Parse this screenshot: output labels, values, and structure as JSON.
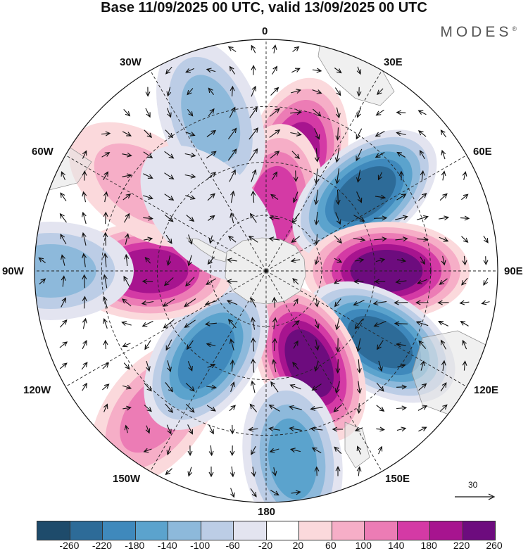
{
  "title": "Base 11/09/2025 00 UTC, valid 13/09/2025 00 UTC",
  "brand": "MODES",
  "brand_mark": "®",
  "longitude_labels": {
    "top": "0",
    "e30": "30E",
    "e60": "60E",
    "e90": "90E",
    "e120": "120E",
    "e150": "150E",
    "bottom": "180",
    "w150": "150W",
    "w120": "120W",
    "w90": "90W",
    "w60": "60W",
    "w30": "30W"
  },
  "reference_vector": {
    "label": "30"
  },
  "colorbar": {
    "colors": [
      "#1e4b6b",
      "#2d6b98",
      "#3f89bc",
      "#5ba3cd",
      "#8db9db",
      "#bccde6",
      "#e3e4f0",
      "#ffffff",
      "#fbd9dc",
      "#f6aec7",
      "#ec7cb5",
      "#d43aa5",
      "#a7148f",
      "#6d0c7e"
    ],
    "ticks": [
      "-260",
      "-220",
      "-180",
      "-140",
      "-100",
      "-60",
      "-20",
      "20",
      "60",
      "100",
      "140",
      "180",
      "220",
      "260"
    ]
  },
  "map_field": {
    "anomalies": [
      {
        "lon": 15,
        "r": 0.5,
        "value": 200
      },
      {
        "lon": 7,
        "r": 0.28,
        "value": 160
      },
      {
        "lon": 52,
        "r": 0.54,
        "value": -230
      },
      {
        "lon": 90,
        "r": 0.52,
        "value": 230
      },
      {
        "lon": 122,
        "r": 0.58,
        "value": -260
      },
      {
        "lon": 155,
        "r": 0.44,
        "value": 240
      },
      {
        "lon": 172,
        "r": 0.82,
        "value": -150
      },
      {
        "lon": -142,
        "r": 0.78,
        "value": 110
      },
      {
        "lon": -145,
        "r": 0.45,
        "value": -200
      },
      {
        "lon": -90,
        "r": 0.5,
        "value": 210
      },
      {
        "lon": -90,
        "r": 0.93,
        "value": -140
      },
      {
        "lon": -55,
        "r": 0.65,
        "value": 90
      },
      {
        "lon": -20,
        "r": 0.7,
        "value": -130
      },
      {
        "lon": -45,
        "r": 0.35,
        "value": -60
      }
    ]
  }
}
